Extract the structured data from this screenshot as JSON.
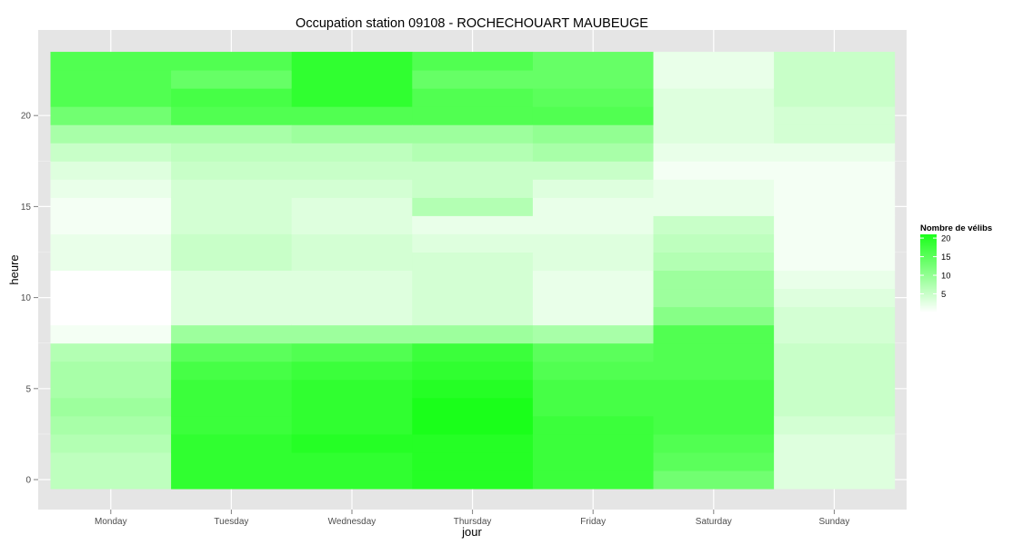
{
  "chart_data": {
    "type": "heatmap",
    "title": "Occupation station 09108 - ROCHECHOUART MAUBEUGE",
    "xlabel": "jour",
    "ylabel": "heure",
    "x_categories": [
      "Monday",
      "Tuesday",
      "Wednesday",
      "Thursday",
      "Friday",
      "Saturday",
      "Sunday"
    ],
    "y_hours": [
      0,
      1,
      2,
      3,
      4,
      5,
      6,
      7,
      8,
      9,
      10,
      11,
      12,
      13,
      14,
      15,
      16,
      17,
      18,
      19,
      20,
      21,
      22,
      23
    ],
    "y_ticks": [
      0,
      5,
      10,
      15,
      20
    ],
    "ylim": [
      -0.5,
      23.5
    ],
    "grid": true,
    "legend": {
      "title": "Nombre de vélibs",
      "position": "right",
      "ticks": [
        5,
        10,
        15,
        20
      ],
      "range": [
        0,
        21
      ],
      "low_color": "#ffffff",
      "high_color": "#1aff1a"
    },
    "values": {
      "Monday": [
        6,
        6,
        7,
        8,
        9,
        8,
        8,
        7,
        1,
        0,
        0,
        0,
        2,
        2,
        1,
        1,
        2,
        3,
        5,
        8,
        13,
        16,
        16,
        16
      ],
      "Tuesday": [
        19,
        19,
        19,
        18,
        18,
        18,
        17,
        15,
        9,
        3,
        3,
        3,
        5,
        5,
        4,
        4,
        4,
        5,
        6,
        8,
        16,
        17,
        14,
        16
      ],
      "Wednesday": [
        19,
        19,
        20,
        19,
        19,
        19,
        18,
        16,
        9,
        3,
        3,
        3,
        4,
        4,
        3,
        3,
        4,
        5,
        6,
        9,
        16,
        19,
        19,
        19
      ],
      "Thursday": [
        20,
        20,
        20,
        21,
        21,
        20,
        19,
        18,
        9,
        4,
        4,
        4,
        4,
        3,
        2,
        7,
        5,
        5,
        7,
        9,
        16,
        16,
        14,
        16
      ],
      "Friday": [
        18,
        18,
        18,
        18,
        17,
        17,
        16,
        15,
        8,
        2,
        2,
        2,
        3,
        3,
        2,
        2,
        3,
        5,
        8,
        10,
        16,
        15,
        14,
        14
      ],
      "Saturday": [
        13,
        15,
        16,
        17,
        17,
        17,
        16,
        16,
        16,
        11,
        9,
        9,
        7,
        6,
        5,
        2,
        2,
        1,
        2,
        3,
        3,
        3,
        2,
        2
      ],
      "Sunday": [
        3,
        3,
        3,
        4,
        5,
        5,
        5,
        5,
        4,
        4,
        3,
        2,
        1,
        1,
        1,
        1,
        1,
        1,
        2,
        4,
        4,
        5,
        5,
        5
      ]
    }
  }
}
